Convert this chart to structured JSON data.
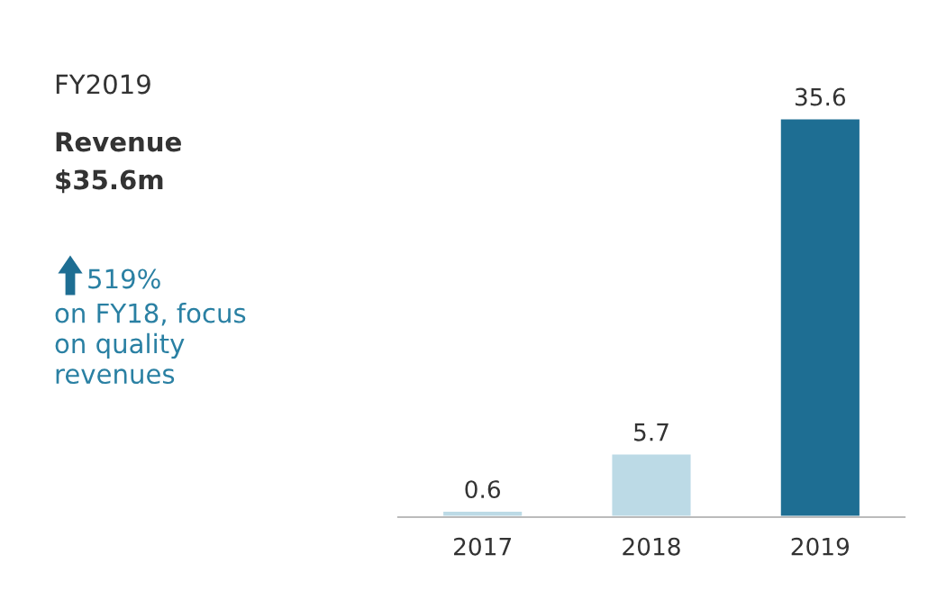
{
  "chart_data": {
    "type": "bar",
    "categories": [
      "2017",
      "2018",
      "2019"
    ],
    "values": [
      0.6,
      5.7,
      35.6
    ],
    "colors": [
      "#bcdae6",
      "#bcdae6",
      "#1e6e93"
    ],
    "data_labels": true,
    "tick_labels": "x",
    "grid": false,
    "legend": false,
    "annotations": [
      "FY2019",
      "Revenue",
      "$35.6m",
      "519%",
      "on FY18, focus\non quality\nrevenues"
    ]
  }
}
